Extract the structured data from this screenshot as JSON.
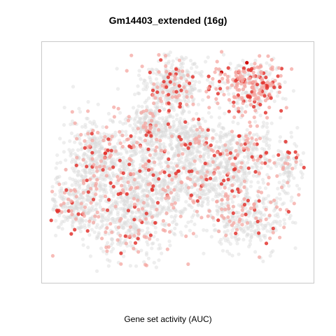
{
  "title": "Gm14403_extended (16g)",
  "xlabel": "Gene set activity (AUC)",
  "chart_data": {
    "type": "scatter",
    "title": "Gm14403_extended (16g)",
    "xlabel": "Gene set activity (AUC)",
    "ylabel": "",
    "grid": false,
    "legend": "none",
    "colors": {
      "low": "#d9d9d9",
      "mid": "#f4a6a0",
      "high": "#e3342f",
      "max": "#cc0000"
    },
    "clusters": [
      {
        "cx": -0.05,
        "cy": 0.62,
        "sx": 0.12,
        "sy": 0.12,
        "n": 380,
        "activity": 0.18
      },
      {
        "cx": -0.22,
        "cy": 0.28,
        "sx": 0.1,
        "sy": 0.1,
        "n": 300,
        "activity": 0.15
      },
      {
        "cx": -0.62,
        "cy": 0.05,
        "sx": 0.12,
        "sy": 0.16,
        "n": 420,
        "activity": 0.16
      },
      {
        "cx": -0.78,
        "cy": -0.35,
        "sx": 0.1,
        "sy": 0.12,
        "n": 260,
        "activity": 0.14
      },
      {
        "cx": -0.35,
        "cy": -0.45,
        "sx": 0.18,
        "sy": 0.18,
        "n": 520,
        "activity": 0.17
      },
      {
        "cx": 0.1,
        "cy": -0.15,
        "sx": 0.2,
        "sy": 0.16,
        "n": 520,
        "activity": 0.16
      },
      {
        "cx": 0.45,
        "cy": 0.05,
        "sx": 0.18,
        "sy": 0.14,
        "n": 440,
        "activity": 0.18
      },
      {
        "cx": 0.55,
        "cy": -0.45,
        "sx": 0.15,
        "sy": 0.14,
        "n": 320,
        "activity": 0.15
      },
      {
        "cx": 0.55,
        "cy": 0.62,
        "sx": 0.13,
        "sy": 0.1,
        "n": 360,
        "activity": 0.55
      },
      {
        "cx": 0.1,
        "cy": 0.2,
        "sx": 0.1,
        "sy": 0.08,
        "n": 200,
        "activity": 0.14
      },
      {
        "cx": -0.3,
        "cy": -0.1,
        "sx": 0.1,
        "sy": 0.12,
        "n": 220,
        "activity": 0.15
      },
      {
        "cx": 0.85,
        "cy": -0.05,
        "sx": 0.05,
        "sy": 0.1,
        "n": 90,
        "activity": 0.2
      }
    ],
    "xlim": [
      -1.05,
      1.05
    ],
    "ylim": [
      -0.98,
      0.98
    ]
  }
}
